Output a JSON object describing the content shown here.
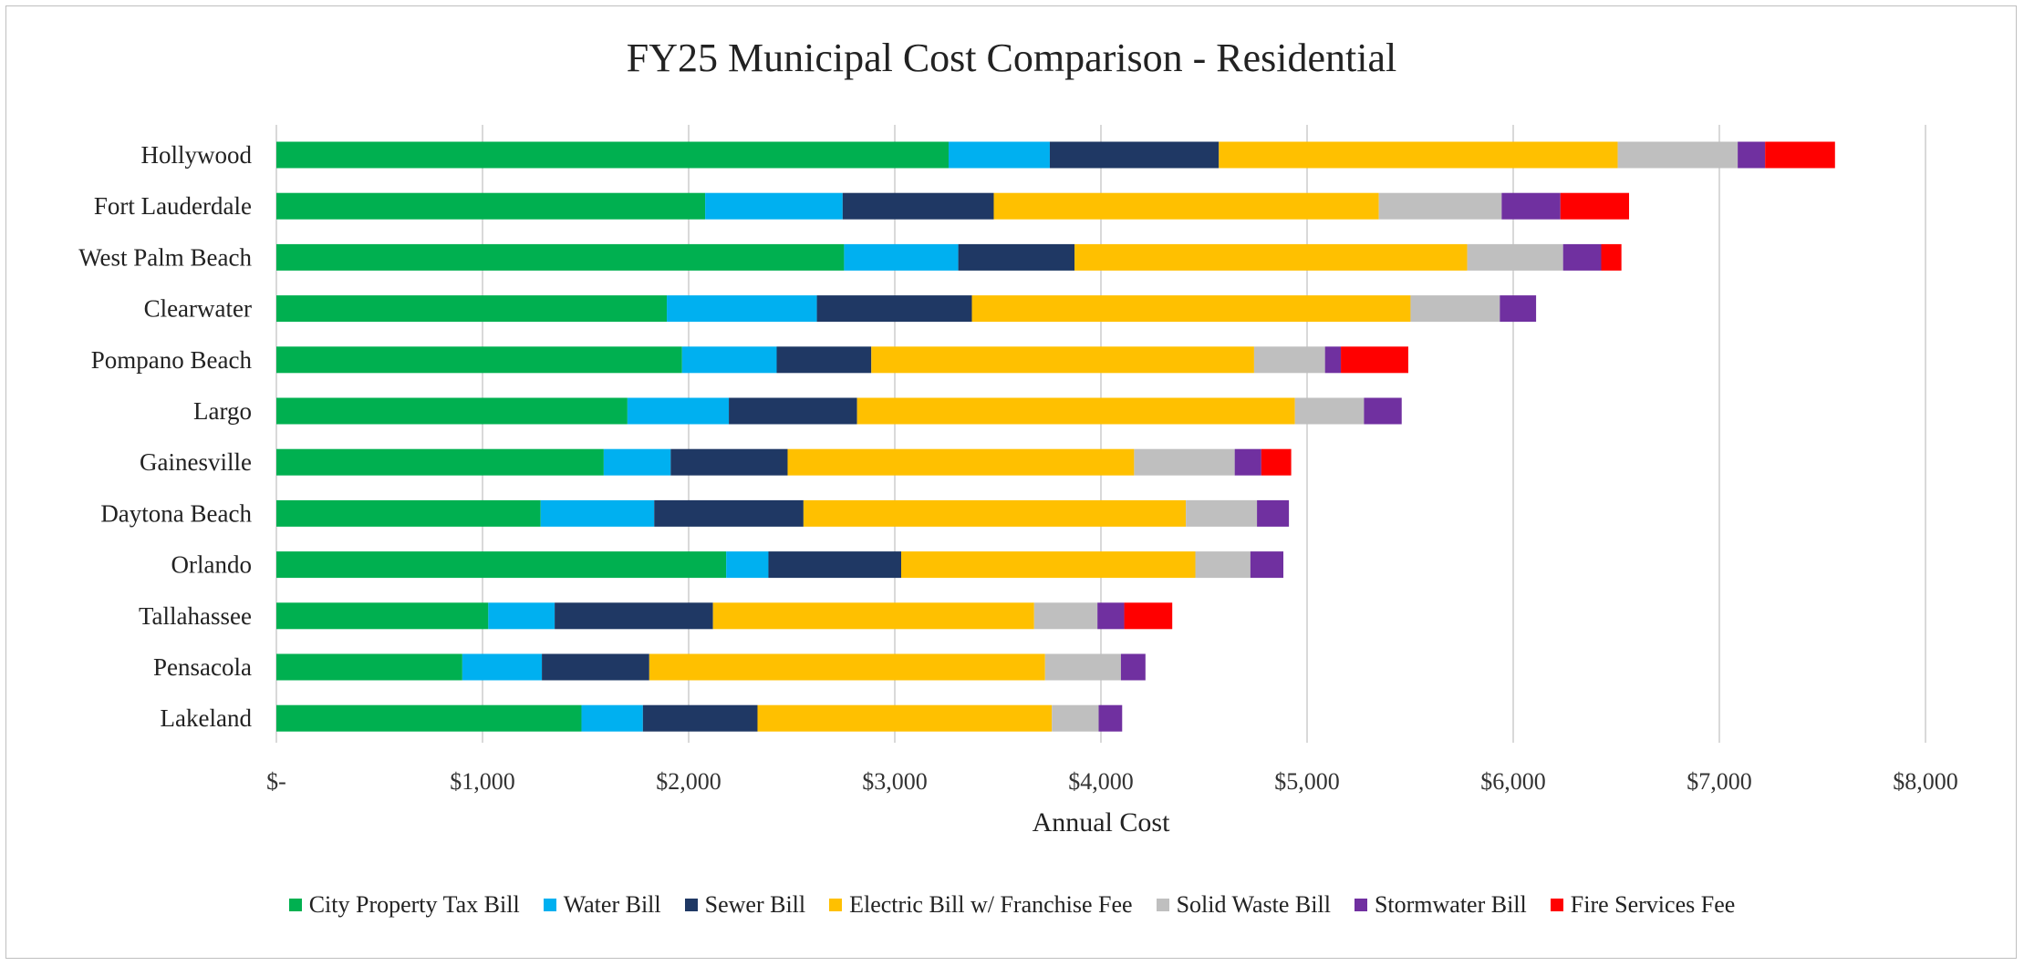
{
  "chart_data": {
    "type": "bar",
    "orientation": "horizontal",
    "stacked": true,
    "title": "FY25 Municipal Cost Comparison - Residential",
    "xlabel": "Annual Cost",
    "ylabel": "",
    "xlim": [
      0,
      8000
    ],
    "x_ticks": [
      0,
      1000,
      2000,
      3000,
      4000,
      5000,
      6000,
      7000,
      8000
    ],
    "x_tick_labels": [
      "$-",
      "$1,000",
      "$2,000",
      "$3,000",
      "$4,000",
      "$5,000",
      "$6,000",
      "$7,000",
      "$8,000"
    ],
    "grid": "vertical",
    "legend_position": "bottom",
    "categories": [
      "Hollywood",
      "Fort Lauderdale",
      "West Palm Beach",
      "Clearwater",
      "Pompano Beach",
      "Largo",
      "Gainesville",
      "Daytona Beach",
      "Orlando",
      "Tallahassee",
      "Pensacola",
      "Lakeland"
    ],
    "series": [
      {
        "name": "City Property Tax Bill",
        "color": "#00b050",
        "values": [
          3261,
          2080,
          2754,
          1894,
          1968,
          1703,
          1588,
          1282,
          2182,
          1028,
          902,
          1480
        ]
      },
      {
        "name": "Water Bill",
        "color": "#00b0f0",
        "values": [
          491,
          667,
          554,
          728,
          459,
          492,
          325,
          551,
          205,
          322,
          386,
          298
        ]
      },
      {
        "name": "Sewer Bill",
        "color": "#1f3864",
        "values": [
          820,
          733,
          564,
          752,
          459,
          622,
          567,
          724,
          644,
          768,
          521,
          556
        ]
      },
      {
        "name": "Electric Bill w/ Franchise Fee",
        "color": "#ffc000",
        "values": [
          1935,
          1868,
          1905,
          2128,
          1857,
          2124,
          1681,
          1855,
          1427,
          1558,
          1920,
          1428
        ]
      },
      {
        "name": "Solid Waste Bill",
        "color": "#bfbfbf",
        "values": [
          582,
          596,
          465,
          433,
          344,
          335,
          488,
          345,
          267,
          307,
          368,
          227
        ]
      },
      {
        "name": "Stormwater Bill",
        "color": "#7030a0",
        "values": [
          133,
          285,
          185,
          176,
          77,
          183,
          129,
          155,
          160,
          130,
          119,
          114
        ]
      },
      {
        "name": "Fire Services Fee",
        "color": "#ff0000",
        "values": [
          339,
          333,
          98,
          0,
          327,
          0,
          145,
          0,
          0,
          233,
          0,
          0
        ]
      }
    ]
  }
}
